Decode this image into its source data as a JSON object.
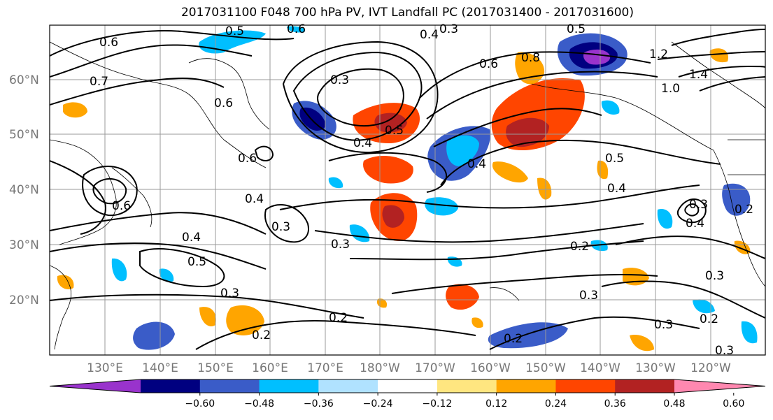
{
  "title": "2017031100 F048 700 hPa PV, IVT Landfall PC (2017031400 - 2017031600)",
  "lat_labels": [
    "60°N",
    "50°N",
    "40°N",
    "30°N",
    "20°N"
  ],
  "lon_labels": [
    "130°E",
    "140°E",
    "150°E",
    "160°E",
    "170°E",
    "180°W",
    "170°W",
    "160°W",
    "150°W",
    "140°W",
    "130°W",
    "120°W"
  ],
  "colorbar": {
    "ticks": [
      "−0.60",
      "−0.48",
      "−0.36",
      "−0.24",
      "−0.12",
      "0.12",
      "0.24",
      "0.36",
      "0.48",
      "0.60"
    ],
    "colors": [
      "#9933cc",
      "#000080",
      "#3a5cc8",
      "#00bfff",
      "#b0e2ff",
      "#ffffff",
      "#ffe680",
      "#ffa500",
      "#ff4500",
      "#b22222",
      "#ff88b0"
    ]
  },
  "contour_labels": [
    "0.5",
    "0.6",
    "0.4",
    "0.3",
    "0.5",
    "0.6",
    "0.7",
    "0.6",
    "0.3",
    "0.8",
    "0.6",
    "1.2",
    "1.4",
    "1.0",
    "0.5",
    "0.4",
    "0.4",
    "0.6",
    "0.4",
    "0.3",
    "0.6",
    "0.5",
    "0.4",
    "0.3",
    "0.4",
    "0.5",
    "0.3",
    "0.2",
    "0.2",
    "0.3",
    "0.3",
    "0.2",
    "0.2",
    "0.3",
    "0.2",
    "0.3",
    "0.4",
    "0.3",
    "0.2"
  ]
}
